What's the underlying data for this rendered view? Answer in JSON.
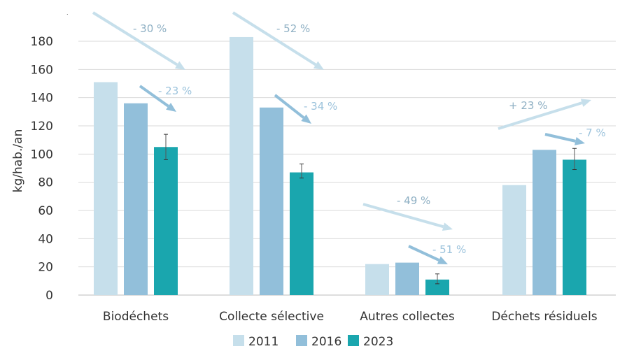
{
  "chart_data": {
    "type": "bar",
    "title": "",
    "xlabel": "",
    "ylabel": "kg/hab./an",
    "ylim": [
      0,
      180
    ],
    "yticks": [
      0,
      20,
      40,
      60,
      80,
      100,
      120,
      140,
      160,
      180
    ],
    "grid": true,
    "legend_position": "bottom",
    "categories": [
      "Biodéchets",
      "Collecte sélective",
      "Autres collectes",
      "Déchets résiduels"
    ],
    "series": [
      {
        "name": "2011",
        "color": "#c6dfeb",
        "values": [
          151,
          183,
          22,
          78
        ]
      },
      {
        "name": "2016",
        "color": "#92bfda",
        "values": [
          136,
          133,
          23,
          103
        ]
      },
      {
        "name": "2023",
        "color": "#1aa6ae",
        "values": [
          105,
          87,
          11,
          96
        ],
        "error_bars": [
          [
            96,
            114
          ],
          [
            83,
            93
          ],
          [
            8,
            15
          ],
          [
            89,
            104
          ]
        ]
      }
    ],
    "annotations": [
      {
        "category": "Biodéchets",
        "comparison": "2011-2023",
        "label": "- 30 %"
      },
      {
        "category": "Biodéchets",
        "comparison": "2016-2023",
        "label": "- 23 %"
      },
      {
        "category": "Collecte sélective",
        "comparison": "2011-2023",
        "label": "- 52 %"
      },
      {
        "category": "Collecte sélective",
        "comparison": "2016-2023",
        "label": "- 34 %"
      },
      {
        "category": "Autres collectes",
        "comparison": "2011-2023",
        "label": "- 49 %"
      },
      {
        "category": "Autres collectes",
        "comparison": "2016-2023",
        "label": "- 51 %"
      },
      {
        "category": "Déchets résiduels",
        "comparison": "2011-2023",
        "label": "+ 23 %"
      },
      {
        "category": "Déchets résiduels",
        "comparison": "2016-2023",
        "label": "- 7 %"
      }
    ]
  }
}
